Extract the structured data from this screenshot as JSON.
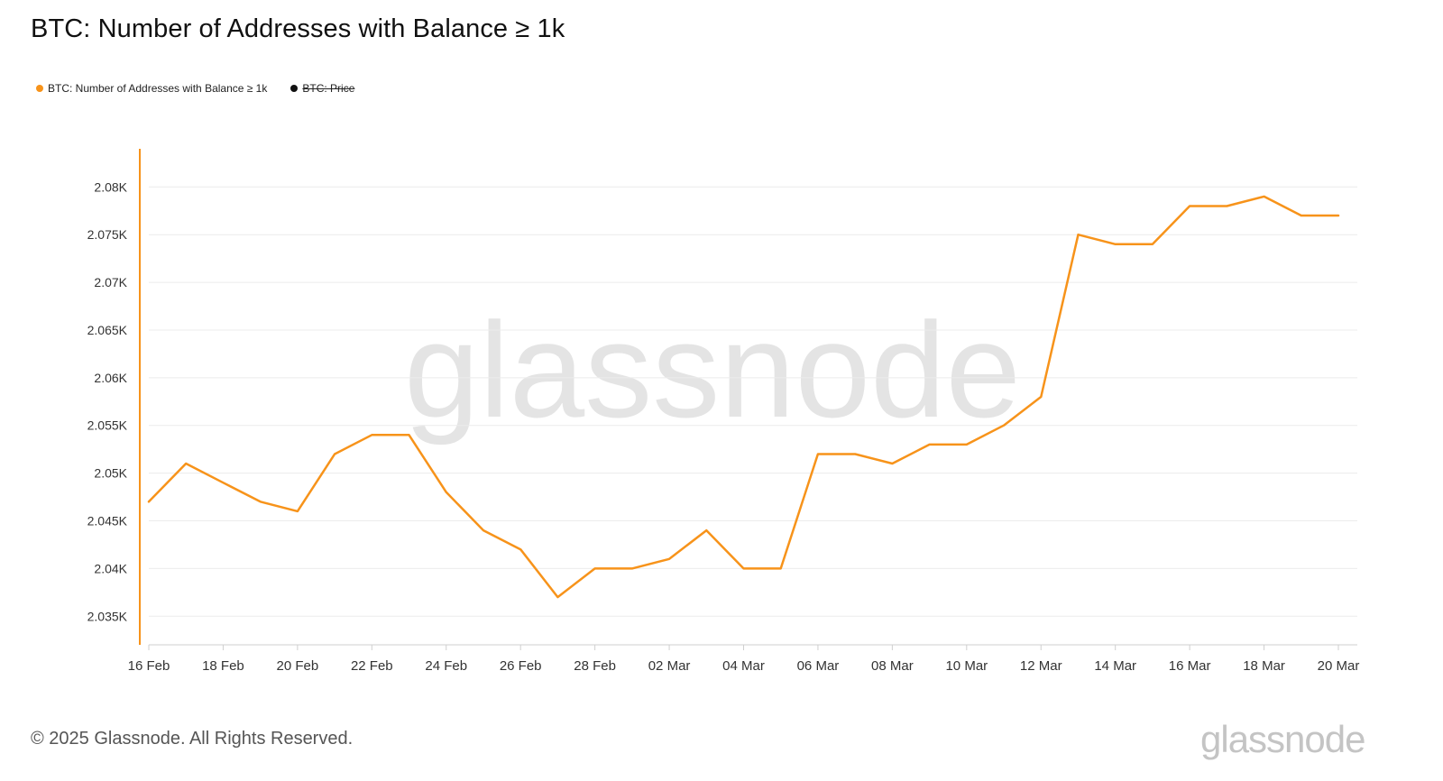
{
  "title": "BTC: Number of Addresses with Balance ≥ 1k",
  "legend": [
    {
      "label": "BTC: Number of Addresses with Balance ≥ 1k",
      "color": "#f7931a",
      "active": true
    },
    {
      "label": "BTC: Price",
      "color": "#111111",
      "active": false
    }
  ],
  "watermark": "glassnode",
  "footer": {
    "copyright": "© 2025 Glassnode. All Rights Reserved.",
    "logo": "glassnode"
  },
  "colors": {
    "series": "#f7931a",
    "grid": "#ececec",
    "axis": "#cfcfcf",
    "watermark": "#e4e4e4"
  },
  "chart_data": {
    "type": "line",
    "x": [
      "16 Feb",
      "17 Feb",
      "18 Feb",
      "19 Feb",
      "20 Feb",
      "21 Feb",
      "22 Feb",
      "23 Feb",
      "24 Feb",
      "25 Feb",
      "26 Feb",
      "27 Feb",
      "28 Feb",
      "01 Mar",
      "02 Mar",
      "03 Mar",
      "04 Mar",
      "05 Mar",
      "06 Mar",
      "07 Mar",
      "08 Mar",
      "09 Mar",
      "10 Mar",
      "11 Mar",
      "12 Mar",
      "13 Mar",
      "14 Mar",
      "15 Mar",
      "16 Mar",
      "17 Mar",
      "18 Mar",
      "19 Mar",
      "20 Mar"
    ],
    "x_tick_labels": [
      "16 Feb",
      "18 Feb",
      "20 Feb",
      "22 Feb",
      "24 Feb",
      "26 Feb",
      "28 Feb",
      "02 Mar",
      "04 Mar",
      "06 Mar",
      "08 Mar",
      "10 Mar",
      "12 Mar",
      "14 Mar",
      "16 Mar",
      "18 Mar",
      "20 Mar"
    ],
    "series": [
      {
        "name": "BTC: Number of Addresses with Balance ≥ 1k",
        "color": "#f7931a",
        "values": [
          2047,
          2051,
          2049,
          2047,
          2046,
          2052,
          2054,
          2054,
          2048,
          2044,
          2042,
          2037,
          2040,
          2040,
          2041,
          2044,
          2040,
          2040,
          2052,
          2052,
          2051,
          2053,
          2053,
          2055,
          2058,
          2075,
          2074,
          2074,
          2078,
          2078,
          2079,
          2077,
          2077
        ]
      }
    ],
    "y_ticks": [
      2035,
      2040,
      2045,
      2050,
      2055,
      2060,
      2065,
      2070,
      2075,
      2080
    ],
    "y_tick_labels": [
      "2.035K",
      "2.04K",
      "2.045K",
      "2.05K",
      "2.055K",
      "2.06K",
      "2.065K",
      "2.07K",
      "2.075K",
      "2.08K"
    ],
    "ylim": [
      2032,
      2084
    ],
    "title": "BTC: Number of Addresses with Balance ≥ 1k",
    "xlabel": "",
    "ylabel": "",
    "grid": true,
    "legend_position": "top-left"
  }
}
